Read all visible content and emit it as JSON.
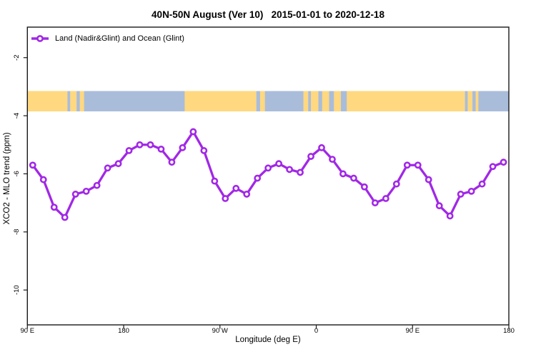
{
  "title": "40N-50N August (Ver 10)   2015-01-01 to 2020-12-18",
  "legend": {
    "items": [
      {
        "label": "Land (Nadir&Glint) and Ocean (Glint)",
        "marker": "open-circle-on-line",
        "color": "#A128E6"
      }
    ]
  },
  "colors": {
    "series_purple": "#A128E6",
    "land_yellow": "#FFD880",
    "ocean_blue": "#A9BDDB",
    "axis_black": "#1a1a1a"
  },
  "chart_data": {
    "type": "line",
    "title": "40N-50N August (Ver 10)   2015-01-01 to 2020-12-18",
    "xlabel": "Longitude (deg E)",
    "ylabel": "XCO2 - MLO trend (ppm)",
    "x_axis_note": "x axis is longitude wrapping eastward: 90E -> 180 -> 90W -> 0 -> 90E -> 180 (stored as 90..540 deg)",
    "xlim": [
      90,
      540
    ],
    "ylim": [
      -11.2,
      -0.95
    ],
    "grid": false,
    "legend_position": "top-left",
    "x_ticks": [
      {
        "value": 90,
        "label": "90 E"
      },
      {
        "value": 180,
        "label": "180"
      },
      {
        "value": 270,
        "label": "90 W"
      },
      {
        "value": 360,
        "label": "0"
      },
      {
        "value": 450,
        "label": "90 E"
      },
      {
        "value": 540,
        "label": "180"
      }
    ],
    "y_ticks": [
      {
        "value": -2,
        "label": "-2"
      },
      {
        "value": -4,
        "label": "-4"
      },
      {
        "value": -6,
        "label": "-6"
      },
      {
        "value": -8,
        "label": "-8"
      },
      {
        "value": -10,
        "label": "-10"
      }
    ],
    "series": [
      {
        "name": "Land (Nadir&Glint) and Ocean (Glint)",
        "color": "#A128E6",
        "marker": "open-circle",
        "x": [
          95,
          105,
          115,
          125,
          135,
          145,
          155,
          165,
          175,
          185,
          195,
          205,
          215,
          225,
          235,
          245,
          255,
          265,
          275,
          285,
          295,
          305,
          315,
          325,
          335,
          345,
          355,
          365,
          375,
          385,
          395,
          405,
          415,
          425,
          435,
          445,
          455,
          465,
          475,
          485,
          495,
          505,
          515,
          525,
          535
        ],
        "values": [
          -5.7,
          -6.2,
          -7.15,
          -7.5,
          -6.7,
          -6.6,
          -6.4,
          -5.8,
          -5.65,
          -5.2,
          -5.0,
          -5.0,
          -5.15,
          -5.6,
          -5.1,
          -4.55,
          -5.2,
          -6.25,
          -6.85,
          -6.5,
          -6.7,
          -6.15,
          -5.8,
          -5.65,
          -5.85,
          -5.95,
          -5.4,
          -5.1,
          -5.5,
          -6.0,
          -6.15,
          -6.45,
          -7.0,
          -6.85,
          -6.35,
          -5.7,
          -5.7,
          -6.2,
          -7.1,
          -7.45,
          -6.7,
          -6.6,
          -6.35,
          -5.75,
          -5.6
        ]
      }
    ],
    "map_band": {
      "description": "land/ocean world strip for 40N-50N drawn across the plot",
      "y_top": -3.15,
      "y_bottom": -3.85,
      "ocean_color": "#A9BDDB",
      "land_color": "#FFD880",
      "land_segments": [
        [
          90,
          127.5
        ],
        [
          130,
          136
        ],
        [
          139,
          143
        ],
        [
          237,
          304
        ],
        [
          307.5,
          312
        ],
        [
          348,
          352.5
        ],
        [
          355,
          362
        ],
        [
          365.5,
          372
        ],
        [
          376.5,
          383
        ],
        [
          388.5,
          499
        ],
        [
          501.5,
          506
        ],
        [
          509,
          511.5
        ]
      ]
    }
  }
}
